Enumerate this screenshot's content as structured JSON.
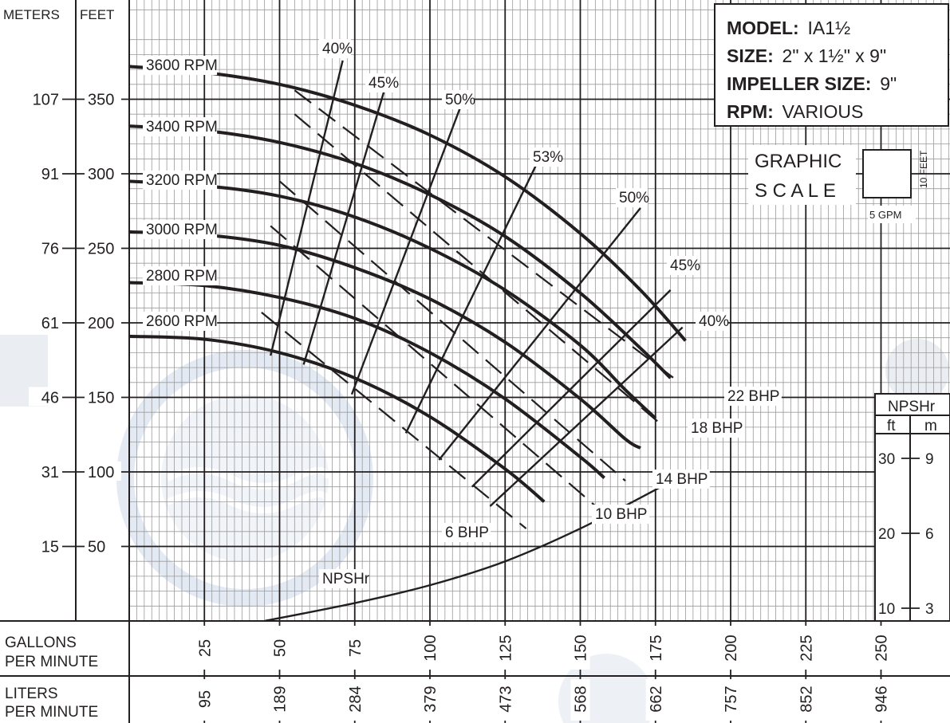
{
  "chart_data": {
    "type": "line",
    "info_box": [
      {
        "key": "MODEL:",
        "value": "IA1½"
      },
      {
        "key": "SIZE:",
        "value": "2\" x 1½\" x 9\""
      },
      {
        "key": "IMPELLER SIZE:",
        "value": "9\""
      },
      {
        "key": "RPM:",
        "value": "VARIOUS"
      }
    ],
    "y_axis": {
      "meters_label": "METERS",
      "feet_label": "FEET",
      "ylim_feet": [
        0,
        400
      ],
      "ticks": [
        {
          "m": "107",
          "ft": "350",
          "value": 350
        },
        {
          "m": "91",
          "ft": "300",
          "value": 300
        },
        {
          "m": "76",
          "ft": "250",
          "value": 250
        },
        {
          "m": "61",
          "ft": "200",
          "value": 200
        },
        {
          "m": "46",
          "ft": "150",
          "value": 150
        },
        {
          "m": "31",
          "ft": "100",
          "value": 100
        },
        {
          "m": "15",
          "ft": "50",
          "value": 50
        }
      ]
    },
    "x_axis": {
      "gpm_label_1": "GALLONS",
      "gpm_label_2": "PER MINUTE",
      "lpm_label_1": "LITERS",
      "lpm_label_2": "PER MINUTE",
      "xlim_gpm": [
        0,
        280
      ],
      "ticks": [
        {
          "gpm": "25",
          "lpm": "95",
          "value": 25
        },
        {
          "gpm": "50",
          "lpm": "189",
          "value": 50
        },
        {
          "gpm": "75",
          "lpm": "284",
          "value": 75
        },
        {
          "gpm": "100",
          "lpm": "379",
          "value": 100
        },
        {
          "gpm": "125",
          "lpm": "473",
          "value": 125
        },
        {
          "gpm": "150",
          "lpm": "568",
          "value": 150
        },
        {
          "gpm": "175",
          "lpm": "662",
          "value": 175
        },
        {
          "gpm": "200",
          "lpm": "757",
          "value": 200
        },
        {
          "gpm": "225",
          "lpm": "852",
          "value": 225
        },
        {
          "gpm": "250",
          "lpm": "946",
          "value": 250
        }
      ]
    },
    "graphic_scale": {
      "text_1": "GRAPHIC",
      "text_2": "S C A L E",
      "side_label": "10 FEET",
      "bottom_label": "5 GPM"
    },
    "npshr_scale": {
      "title": "NPSHr",
      "col_ft": "ft",
      "col_m": "m",
      "ticks": [
        {
          "ft": "30",
          "m": "9",
          "value": 30
        },
        {
          "ft": "20",
          "m": "6",
          "value": 20
        },
        {
          "ft": "10",
          "m": "3",
          "value": 10
        }
      ]
    },
    "rpm_curves": [
      {
        "name": "3600 RPM",
        "x": [
          0,
          25,
          50,
          75,
          100,
          125,
          150,
          170,
          185
        ],
        "y": [
          372,
          368,
          360,
          346,
          326,
          298,
          260,
          222,
          188
        ]
      },
      {
        "name": "3400 RPM",
        "x": [
          0,
          25,
          50,
          75,
          100,
          125,
          150,
          170,
          180
        ],
        "y": [
          332,
          329,
          321,
          307,
          286,
          258,
          220,
          183,
          163
        ]
      },
      {
        "name": "3200 RPM",
        "x": [
          0,
          25,
          50,
          75,
          100,
          125,
          150,
          165,
          175
        ],
        "y": [
          295,
          292,
          285,
          271,
          250,
          222,
          185,
          155,
          136
        ]
      },
      {
        "name": "3000 RPM",
        "x": [
          0,
          25,
          50,
          75,
          100,
          125,
          150,
          165,
          170
        ],
        "y": [
          261,
          259,
          252,
          237,
          216,
          187,
          149,
          122,
          116
        ]
      },
      {
        "name": "2800 RPM",
        "x": [
          0,
          25,
          50,
          75,
          100,
          125,
          150,
          158
        ],
        "y": [
          227,
          225,
          217,
          203,
          180,
          149,
          110,
          96
        ]
      },
      {
        "name": "2600 RPM",
        "x": [
          0,
          25,
          50,
          75,
          100,
          125,
          138
        ],
        "y": [
          191,
          189,
          180,
          163,
          137,
          102,
          80
        ]
      }
    ],
    "efficiency_lines": [
      {
        "name": "40%",
        "x": [
          47,
          71
        ],
        "y": [
          178,
          376
        ]
      },
      {
        "name": "45%",
        "x": [
          58,
          86
        ],
        "y": [
          172,
          364
        ]
      },
      {
        "name": "50%",
        "x": [
          74,
          110
        ],
        "y": [
          152,
          344
        ]
      },
      {
        "name": "53%",
        "x": [
          92,
          138
        ],
        "y": [
          126,
          317
        ]
      },
      {
        "name": "50%",
        "x": [
          103,
          170
        ],
        "y": [
          108,
          277
        ]
      },
      {
        "name": "45%",
        "x": [
          114,
          180
        ],
        "y": [
          90,
          222
        ]
      },
      {
        "name": "40%",
        "x": [
          120,
          184
        ],
        "y": [
          77,
          197
        ]
      }
    ],
    "bhp_lines": [
      {
        "name": "6 BHP",
        "x": [
          44,
          132
        ],
        "y": [
          207,
          62
        ]
      },
      {
        "name": "10 BHP",
        "x": [
          47,
          158
        ],
        "y": [
          265,
          72
        ]
      },
      {
        "name": "14 BHP",
        "x": [
          50,
          165
        ],
        "y": [
          295,
          94
        ]
      },
      {
        "name": "18 BHP",
        "x": [
          55,
          178
        ],
        "y": [
          340,
          130
        ]
      },
      {
        "name": "22 BHP",
        "x": [
          55,
          183
        ],
        "y": [
          356,
          160
        ]
      }
    ],
    "npshr_curve": {
      "name": "NPSHr",
      "x": [
        45,
        75,
        100,
        125,
        150,
        175,
        182
      ],
      "y": [
        0,
        12,
        24,
        40,
        62,
        88,
        96
      ]
    },
    "labels": {
      "rpm": [
        {
          "text": "3600 RPM"
        },
        {
          "text": "3400 RPM"
        },
        {
          "text": "3200 RPM"
        },
        {
          "text": "3000 RPM"
        },
        {
          "text": "2800 RPM"
        },
        {
          "text": "2600 RPM"
        }
      ],
      "efficiency": [
        {
          "text": "40%"
        },
        {
          "text": "45%"
        },
        {
          "text": "50%"
        },
        {
          "text": "53%"
        },
        {
          "text": "50%"
        },
        {
          "text": "45%"
        },
        {
          "text": "40%"
        }
      ],
      "bhp": [
        {
          "text": "22 BHP"
        },
        {
          "text": "18 BHP"
        },
        {
          "text": "14 BHP"
        },
        {
          "text": "10 BHP"
        },
        {
          "text": "6 BHP"
        }
      ],
      "npshr_curve_label": "NPSHr"
    }
  }
}
